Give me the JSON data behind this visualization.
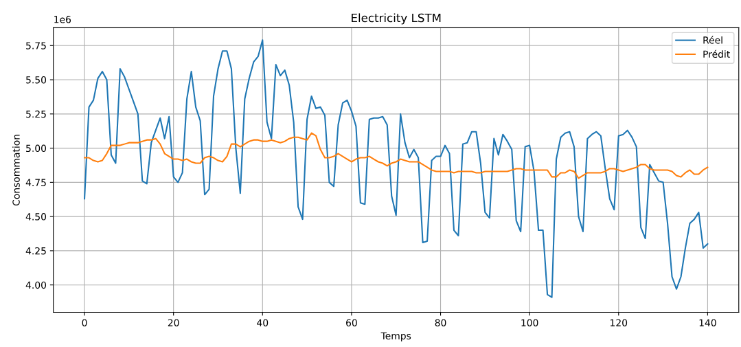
{
  "chart_data": {
    "type": "line",
    "title": "Electricity LSTM",
    "xlabel": "Temps",
    "ylabel": "Consommation",
    "annotations": [
      "1e6"
    ],
    "xlim": [
      -7,
      147
    ],
    "xticks": [
      0,
      20,
      40,
      60,
      80,
      100,
      120,
      140
    ],
    "ylim": [
      3.8,
      5.88
    ],
    "yticks": [
      {
        "value": 4,
        "label": "4.00"
      },
      {
        "value": 4.25,
        "label": "4.25"
      },
      {
        "value": 4.5,
        "label": "4.50"
      },
      {
        "value": 4.75,
        "label": "4.75"
      },
      {
        "value": 5,
        "label": "5.00"
      },
      {
        "value": 5.25,
        "label": "5.25"
      },
      {
        "value": 5.5,
        "label": "5.50"
      },
      {
        "value": 5.75,
        "label": "5.75"
      }
    ],
    "grid": true,
    "legend": "top right",
    "line_style": "solid",
    "x": [
      0,
      1,
      2,
      3,
      4,
      5,
      6,
      7,
      8,
      9,
      10,
      11,
      12,
      13,
      14,
      15,
      16,
      17,
      18,
      19,
      20,
      21,
      22,
      23,
      24,
      25,
      26,
      27,
      28,
      29,
      30,
      31,
      32,
      33,
      34,
      35,
      36,
      37,
      38,
      39,
      40,
      41,
      42,
      43,
      44,
      45,
      46,
      47,
      48,
      49,
      50,
      51,
      52,
      53,
      54,
      55,
      56,
      57,
      58,
      59,
      60,
      61,
      62,
      63,
      64,
      65,
      66,
      67,
      68,
      69,
      70,
      71,
      72,
      73,
      74,
      75,
      76,
      77,
      78,
      79,
      80,
      81,
      82,
      83,
      84,
      85,
      86,
      87,
      88,
      89,
      90,
      91,
      92,
      93,
      94,
      95,
      96,
      97,
      98,
      99,
      100,
      101,
      102,
      103,
      104,
      105,
      106,
      107,
      108,
      109,
      110,
      111,
      112,
      113,
      114,
      115,
      116,
      117,
      118,
      119,
      120,
      121,
      122,
      123,
      124,
      125,
      126,
      127,
      128,
      129,
      130,
      131,
      132,
      133,
      134,
      135,
      136,
      137,
      138,
      139,
      140
    ],
    "series": [
      {
        "name": "Réel",
        "color": "#1f77b4",
        "values": [
          4.63,
          5.3,
          5.35,
          5.51,
          5.56,
          5.5,
          4.95,
          4.89,
          5.58,
          5.52,
          5.43,
          5.34,
          5.25,
          4.76,
          4.74,
          5.04,
          5.13,
          5.22,
          5.07,
          5.23,
          4.79,
          4.75,
          4.82,
          5.36,
          5.56,
          5.3,
          5.2,
          4.66,
          4.7,
          5.38,
          5.58,
          5.71,
          5.71,
          5.58,
          5.0,
          4.67,
          5.36,
          5.51,
          5.63,
          5.67,
          5.79,
          5.19,
          5.07,
          5.61,
          5.53,
          5.57,
          5.46,
          5.19,
          4.57,
          4.48,
          5.21,
          5.38,
          5.29,
          5.3,
          5.24,
          4.75,
          4.72,
          5.17,
          5.33,
          5.35,
          5.27,
          5.16,
          4.6,
          4.59,
          5.21,
          5.22,
          5.22,
          5.23,
          5.17,
          4.65,
          4.51,
          5.25,
          5.04,
          4.93,
          4.99,
          4.93,
          4.31,
          4.32,
          4.91,
          4.94,
          4.94,
          5.02,
          4.96,
          4.4,
          4.36,
          5.03,
          5.04,
          5.12,
          5.12,
          4.89,
          4.53,
          4.49,
          5.07,
          4.95,
          5.1,
          5.05,
          4.99,
          4.47,
          4.39,
          5.01,
          5.02,
          4.83,
          4.4,
          4.4,
          3.93,
          3.91,
          4.92,
          5.08,
          5.11,
          5.12,
          5.01,
          4.5,
          4.39,
          5.07,
          5.1,
          5.12,
          5.09,
          4.85,
          4.63,
          4.55,
          5.09,
          5.1,
          5.13,
          5.08,
          5.01,
          4.42,
          4.34,
          4.88,
          4.82,
          4.76,
          4.75,
          4.45,
          4.06,
          3.97,
          4.06,
          4.27,
          4.45,
          4.48,
          4.53,
          4.27,
          4.3
        ]
      },
      {
        "name": "Prédit",
        "color": "#ff7f0e",
        "values": [
          4.93,
          4.93,
          4.91,
          4.9,
          4.91,
          4.96,
          5.02,
          5.02,
          5.02,
          5.03,
          5.04,
          5.04,
          5.04,
          5.05,
          5.06,
          5.06,
          5.07,
          5.03,
          4.96,
          4.94,
          4.92,
          4.92,
          4.91,
          4.92,
          4.9,
          4.89,
          4.89,
          4.93,
          4.94,
          4.93,
          4.91,
          4.9,
          4.94,
          5.03,
          5.03,
          5.01,
          5.03,
          5.05,
          5.06,
          5.06,
          5.05,
          5.05,
          5.06,
          5.05,
          5.04,
          5.05,
          5.07,
          5.08,
          5.08,
          5.07,
          5.06,
          5.11,
          5.09,
          4.99,
          4.93,
          4.93,
          4.94,
          4.96,
          4.94,
          4.92,
          4.9,
          4.92,
          4.93,
          4.93,
          4.94,
          4.92,
          4.9,
          4.89,
          4.87,
          4.89,
          4.9,
          4.92,
          4.91,
          4.9,
          4.9,
          4.9,
          4.88,
          4.86,
          4.84,
          4.83,
          4.83,
          4.83,
          4.83,
          4.82,
          4.83,
          4.83,
          4.83,
          4.83,
          4.82,
          4.82,
          4.83,
          4.83,
          4.83,
          4.83,
          4.83,
          4.83,
          4.84,
          4.85,
          4.85,
          4.84,
          4.84,
          4.84,
          4.84,
          4.84,
          4.84,
          4.79,
          4.79,
          4.82,
          4.82,
          4.84,
          4.83,
          4.78,
          4.8,
          4.82,
          4.82,
          4.82,
          4.82,
          4.83,
          4.85,
          4.85,
          4.84,
          4.83,
          4.84,
          4.85,
          4.86,
          4.88,
          4.88,
          4.85,
          4.84,
          4.84,
          4.84,
          4.84,
          4.83,
          4.8,
          4.79,
          4.82,
          4.84,
          4.81,
          4.81,
          4.84,
          4.86
        ]
      }
    ]
  }
}
